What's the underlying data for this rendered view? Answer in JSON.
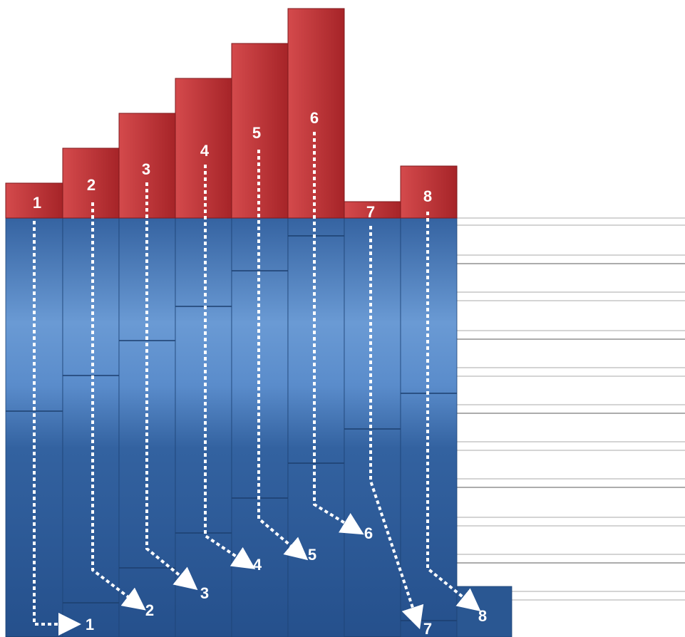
{
  "colors": {
    "top_band": "#c03538",
    "blue_dark": "#2a5792",
    "blue_light": "#6a9ad4",
    "rule_line": "#c6c6c6",
    "arrow": "#ffffff",
    "label": "#ffffff"
  },
  "columns": [
    {
      "top_label": "1",
      "bottom_label": "1"
    },
    {
      "top_label": "2",
      "bottom_label": "2"
    },
    {
      "top_label": "3",
      "bottom_label": "3"
    },
    {
      "top_label": "4",
      "bottom_label": "4"
    },
    {
      "top_label": "5",
      "bottom_label": "5"
    },
    {
      "top_label": "6",
      "bottom_label": "6"
    },
    {
      "top_label": "7",
      "bottom_label": "7"
    },
    {
      "top_label": "8",
      "bottom_label": "8"
    }
  ]
}
